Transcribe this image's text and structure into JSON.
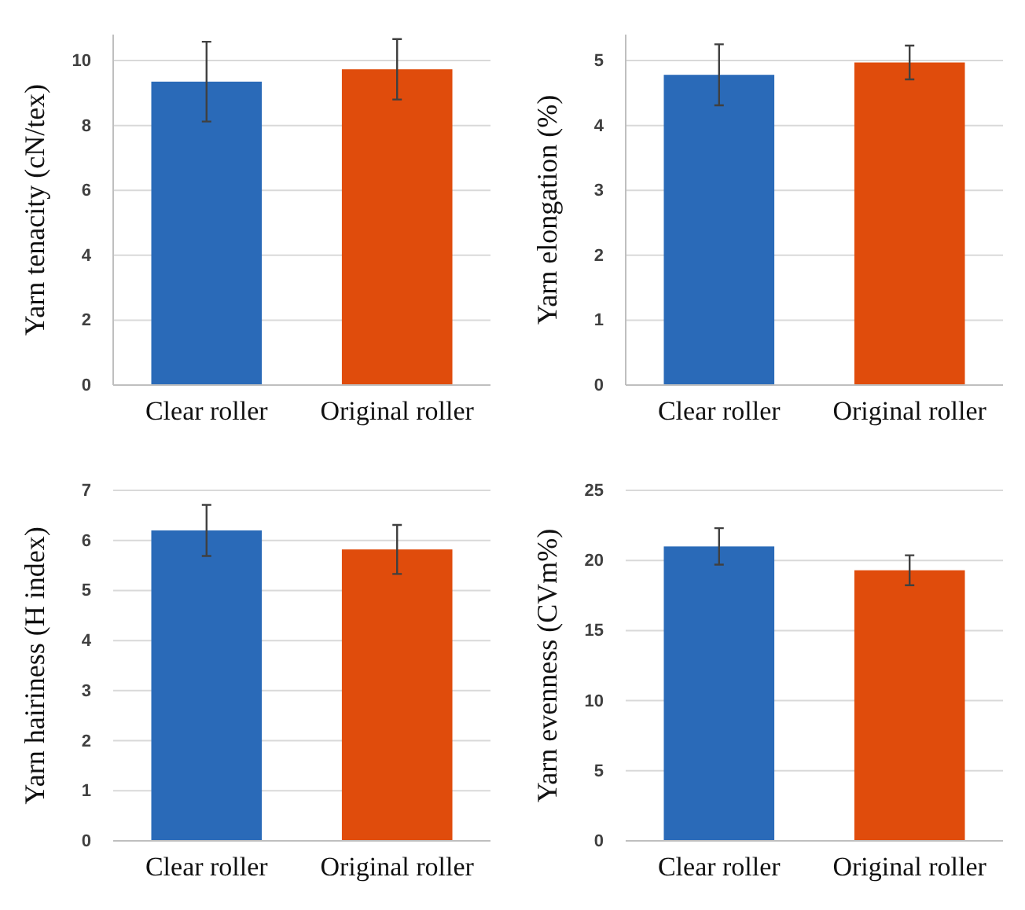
{
  "chart_data": [
    {
      "type": "bar",
      "ylabel": "Yarn tenacity (cN/tex)",
      "categories": [
        "Clear roller",
        "Original roller"
      ],
      "values": [
        9.35,
        9.73
      ],
      "colors": [
        "#2a6ab8",
        "#e04c0c"
      ],
      "errors": [
        1.23,
        0.93
      ],
      "ylim": [
        0,
        10.8
      ],
      "yticks": [
        0,
        2,
        4,
        6,
        8,
        10
      ],
      "grid": "y"
    },
    {
      "type": "bar",
      "ylabel": "Yarn elongation (%)",
      "categories": [
        "Clear roller",
        "Original roller"
      ],
      "values": [
        4.78,
        4.97
      ],
      "colors": [
        "#2a6ab8",
        "#e04c0c"
      ],
      "errors": [
        0.47,
        0.26
      ],
      "ylim": [
        0,
        5.4
      ],
      "yticks": [
        0,
        1,
        2,
        3,
        4,
        5
      ],
      "grid": "y"
    },
    {
      "type": "bar",
      "ylabel": "Yarn hairiness (H index)",
      "categories": [
        "Clear roller",
        "Original roller"
      ],
      "values": [
        6.2,
        5.82
      ],
      "colors": [
        "#2a6ab8",
        "#e04c0c"
      ],
      "errors": [
        0.51,
        0.49
      ],
      "ylim": [
        0,
        7
      ],
      "yticks": [
        0,
        1,
        2,
        3,
        4,
        5,
        6,
        7
      ],
      "grid": "y"
    },
    {
      "type": "bar",
      "ylabel": "Yarn evenness (CVm%)",
      "categories": [
        "Clear roller",
        "Original roller"
      ],
      "values": [
        21.0,
        19.3
      ],
      "colors": [
        "#2a6ab8",
        "#e04c0c"
      ],
      "errors": [
        1.3,
        1.07
      ],
      "ylim": [
        0,
        25
      ],
      "yticks": [
        0,
        5,
        10,
        15,
        20,
        25
      ],
      "grid": "y"
    }
  ]
}
